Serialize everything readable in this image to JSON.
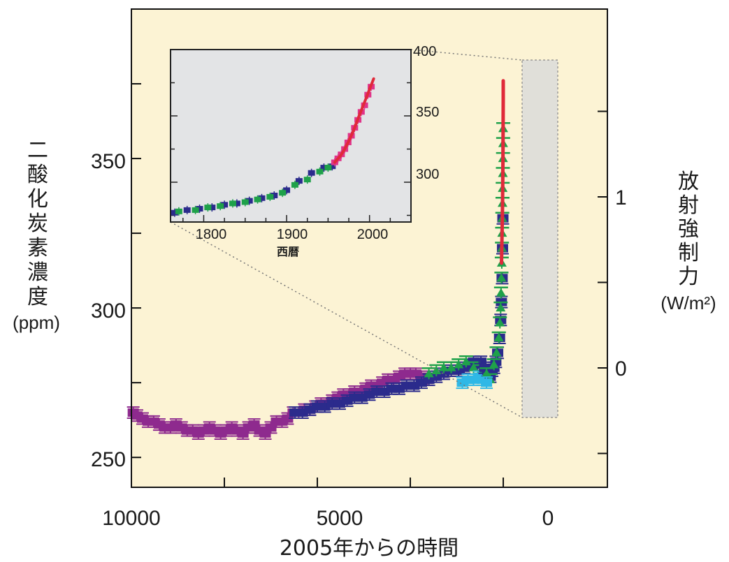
{
  "chart_data": {
    "type": "scatter",
    "xlabel": "2005年からの時間",
    "ylabel": "二酸化炭素濃度",
    "ylabel_unit": "(ppm)",
    "y2label": "放射強制力",
    "y2label_unit": "(W/m²)",
    "x_ticks": [
      "10000",
      "5000",
      "0"
    ],
    "y_ticks": [
      "250",
      "300",
      "350"
    ],
    "y2_ticks": [
      "0",
      "1"
    ],
    "xlim": [
      10000,
      -2800
    ],
    "x_reversed": true,
    "ylim": [
      240,
      400
    ],
    "background": "#fcf3d4",
    "series": [
      {
        "color": "#8e2a8e",
        "marker": "square",
        "points": [
          [
            9950,
            265
          ],
          [
            9850,
            264
          ],
          [
            9700,
            263
          ],
          [
            9550,
            262
          ],
          [
            9400,
            262
          ],
          [
            9250,
            261
          ],
          [
            9100,
            260
          ],
          [
            8950,
            260
          ],
          [
            8800,
            261
          ],
          [
            8650,
            260
          ],
          [
            8500,
            259
          ],
          [
            8350,
            259
          ],
          [
            8200,
            258
          ],
          [
            8050,
            259
          ],
          [
            7900,
            260
          ],
          [
            7750,
            259
          ],
          [
            7600,
            258
          ],
          [
            7450,
            259
          ],
          [
            7300,
            260
          ],
          [
            7150,
            259
          ],
          [
            7000,
            258
          ],
          [
            6850,
            260
          ],
          [
            6700,
            261
          ],
          [
            6550,
            259
          ],
          [
            6400,
            258
          ],
          [
            6250,
            260
          ],
          [
            6100,
            262
          ],
          [
            5950,
            262
          ],
          [
            5800,
            263
          ],
          [
            5650,
            265
          ],
          [
            5500,
            265
          ],
          [
            5350,
            266
          ],
          [
            5200,
            266
          ],
          [
            5050,
            267
          ],
          [
            4900,
            268
          ],
          [
            4750,
            268
          ],
          [
            4600,
            269
          ],
          [
            4450,
            270
          ],
          [
            4300,
            271
          ],
          [
            4150,
            271
          ],
          [
            4000,
            272
          ],
          [
            3850,
            272
          ],
          [
            3700,
            273
          ],
          [
            3550,
            274
          ],
          [
            3400,
            274
          ],
          [
            3250,
            275
          ],
          [
            3100,
            276
          ],
          [
            2950,
            276
          ],
          [
            2800,
            277
          ],
          [
            2650,
            278
          ],
          [
            2500,
            278
          ],
          [
            2350,
            278
          ],
          [
            2200,
            277
          ],
          [
            2050,
            276
          ]
        ]
      },
      {
        "color": "#2b2b8c",
        "marker": "square",
        "points": [
          [
            5600,
            265
          ],
          [
            5400,
            265
          ],
          [
            5200,
            266
          ],
          [
            5000,
            267
          ],
          [
            4800,
            267
          ],
          [
            4600,
            268
          ],
          [
            4400,
            268
          ],
          [
            4200,
            269
          ],
          [
            4000,
            270
          ],
          [
            3800,
            270
          ],
          [
            3600,
            271
          ],
          [
            3400,
            272
          ],
          [
            3200,
            272
          ],
          [
            3000,
            273
          ],
          [
            2800,
            273
          ],
          [
            2600,
            274
          ],
          [
            2400,
            274
          ],
          [
            2200,
            275
          ],
          [
            2000,
            276
          ],
          [
            1800,
            277
          ],
          [
            1600,
            278
          ],
          [
            1400,
            279
          ],
          [
            1200,
            279
          ],
          [
            1050,
            280
          ],
          [
            900,
            281
          ],
          [
            800,
            282
          ],
          [
            700,
            281
          ],
          [
            600,
            282
          ],
          [
            500,
            280
          ],
          [
            420,
            279
          ],
          [
            350,
            277
          ],
          [
            300,
            279
          ],
          [
            250,
            280
          ],
          [
            200,
            282
          ],
          [
            150,
            285
          ],
          [
            100,
            290
          ],
          [
            70,
            296
          ],
          [
            50,
            302
          ],
          [
            30,
            310
          ],
          [
            20,
            320
          ],
          [
            10,
            330
          ]
        ]
      },
      {
        "color": "#1fa14a",
        "marker": "triangle",
        "points": [
          [
            2000,
            278
          ],
          [
            1800,
            279
          ],
          [
            1600,
            280
          ],
          [
            1400,
            280
          ],
          [
            1200,
            281
          ],
          [
            1000,
            282
          ],
          [
            800,
            280
          ],
          [
            600,
            279
          ],
          [
            450,
            278
          ],
          [
            350,
            276
          ],
          [
            250,
            281
          ],
          [
            180,
            285
          ],
          [
            120,
            290
          ],
          [
            90,
            295
          ],
          [
            70,
            300
          ],
          [
            60,
            305
          ],
          [
            50,
            310
          ],
          [
            40,
            315
          ],
          [
            35,
            320
          ],
          [
            30,
            325
          ],
          [
            25,
            330
          ],
          [
            20,
            335
          ],
          [
            15,
            340
          ],
          [
            10,
            345
          ],
          [
            6,
            350
          ],
          [
            3,
            355
          ],
          [
            1,
            360
          ]
        ]
      },
      {
        "color": "#2fb8e6",
        "marker": "square",
        "points": [
          [
            1100,
            275
          ],
          [
            950,
            276
          ],
          [
            800,
            276
          ],
          [
            650,
            277
          ],
          [
            550,
            276
          ],
          [
            450,
            275
          ]
        ]
      },
      {
        "color": "#e02a3a",
        "marker": "line",
        "points": [
          [
            47,
            315
          ],
          [
            40,
            320
          ],
          [
            33,
            325
          ],
          [
            25,
            330
          ],
          [
            20,
            335
          ],
          [
            15,
            340
          ],
          [
            11,
            345
          ],
          [
            8,
            350
          ],
          [
            6,
            355
          ],
          [
            4,
            360
          ],
          [
            2,
            365
          ],
          [
            1,
            370
          ],
          [
            0,
            376
          ]
        ]
      }
    ],
    "inset": {
      "xlabel": "西暦",
      "x_ticks": [
        "1800",
        "1900",
        "2000"
      ],
      "y_ticks": [
        "300",
        "350",
        "400"
      ],
      "xlim": [
        1760,
        2050
      ],
      "ylim": [
        270,
        400
      ],
      "background": "#e3e4e6",
      "series": [
        {
          "color": "#2b2b8c",
          "points": [
            [
              1765,
              277
            ],
            [
              1780,
              279
            ],
            [
              1795,
              280
            ],
            [
              1810,
              281
            ],
            [
              1825,
              283
            ],
            [
              1840,
              284
            ],
            [
              1855,
              286
            ],
            [
              1870,
              288
            ],
            [
              1885,
              290
            ],
            [
              1900,
              294
            ],
            [
              1915,
              301
            ],
            [
              1930,
              307
            ],
            [
              1945,
              311
            ],
            [
              1955,
              312
            ]
          ]
        },
        {
          "color": "#1fa14a",
          "points": [
            [
              1770,
              278
            ],
            [
              1790,
              279
            ],
            [
              1805,
              281
            ],
            [
              1820,
              282
            ],
            [
              1835,
              284
            ],
            [
              1850,
              285
            ],
            [
              1865,
              287
            ],
            [
              1880,
              289
            ],
            [
              1895,
              292
            ],
            [
              1910,
              298
            ],
            [
              1925,
              302
            ],
            [
              1940,
              308
            ],
            [
              1950,
              311
            ]
          ]
        },
        {
          "color": "#e0348a",
          "points": [
            [
              1958,
              315
            ],
            [
              1962,
              318
            ],
            [
              1966,
              321
            ],
            [
              1970,
              325
            ],
            [
              1974,
              330
            ],
            [
              1978,
              335
            ],
            [
              1982,
              341
            ],
            [
              1986,
              347
            ],
            [
              1990,
              353
            ],
            [
              1994,
              358
            ],
            [
              1998,
              366
            ],
            [
              2002,
              372
            ]
          ]
        },
        {
          "color": "#e02a3a",
          "points": [
            [
              1958,
              315
            ],
            [
              1965,
              320
            ],
            [
              1970,
              325
            ],
            [
              1975,
              331
            ],
            [
              1980,
              338
            ],
            [
              1985,
              346
            ],
            [
              1990,
              354
            ],
            [
              1995,
              362
            ],
            [
              2000,
              370
            ],
            [
              2005,
              378
            ]
          ]
        }
      ]
    }
  }
}
